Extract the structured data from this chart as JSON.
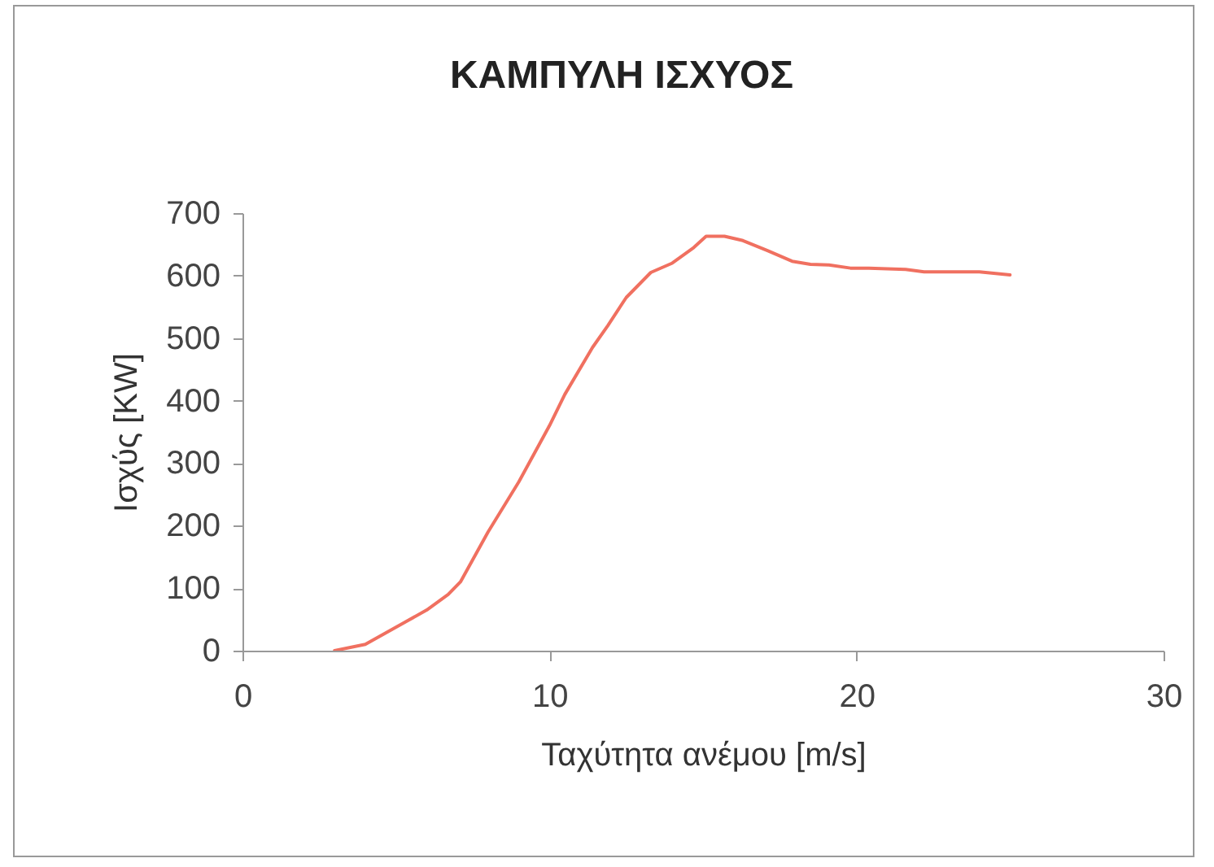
{
  "chart_data": {
    "type": "line",
    "title": "ΚΑΜΠΥΛΗ ΙΣΧΥΟΣ",
    "xlabel": "Ταχύτητα ανέμου [m/s]",
    "ylabel": "Ισχύς [KW]",
    "x": [
      3,
      4,
      6,
      6.7,
      7.1,
      8,
      9,
      10,
      10.5,
      11.4,
      11.9,
      12.5,
      13.3,
      14,
      14.7,
      15.1,
      15.7,
      16.3,
      17.1,
      17.9,
      18.5,
      19.1,
      19.8,
      20.4,
      21.6,
      22.2,
      24,
      25
    ],
    "series": [
      {
        "color": "#f07060",
        "values": [
          0,
          10,
          65,
          90,
          110,
          190,
          270,
          360,
          410,
          485,
          520,
          565,
          605,
          620,
          645,
          663,
          663,
          656,
          640,
          623,
          618,
          617,
          612,
          612,
          610,
          606,
          606,
          601
        ]
      }
    ],
    "xlim": [
      0,
      30
    ],
    "xticks": [
      0,
      10,
      20,
      30
    ],
    "ylim": [
      0,
      700
    ],
    "yticks": [
      0,
      100,
      200,
      300,
      400,
      500,
      600,
      700
    ],
    "grid": false,
    "legend": false,
    "marker": "none",
    "line_style": "solid"
  }
}
